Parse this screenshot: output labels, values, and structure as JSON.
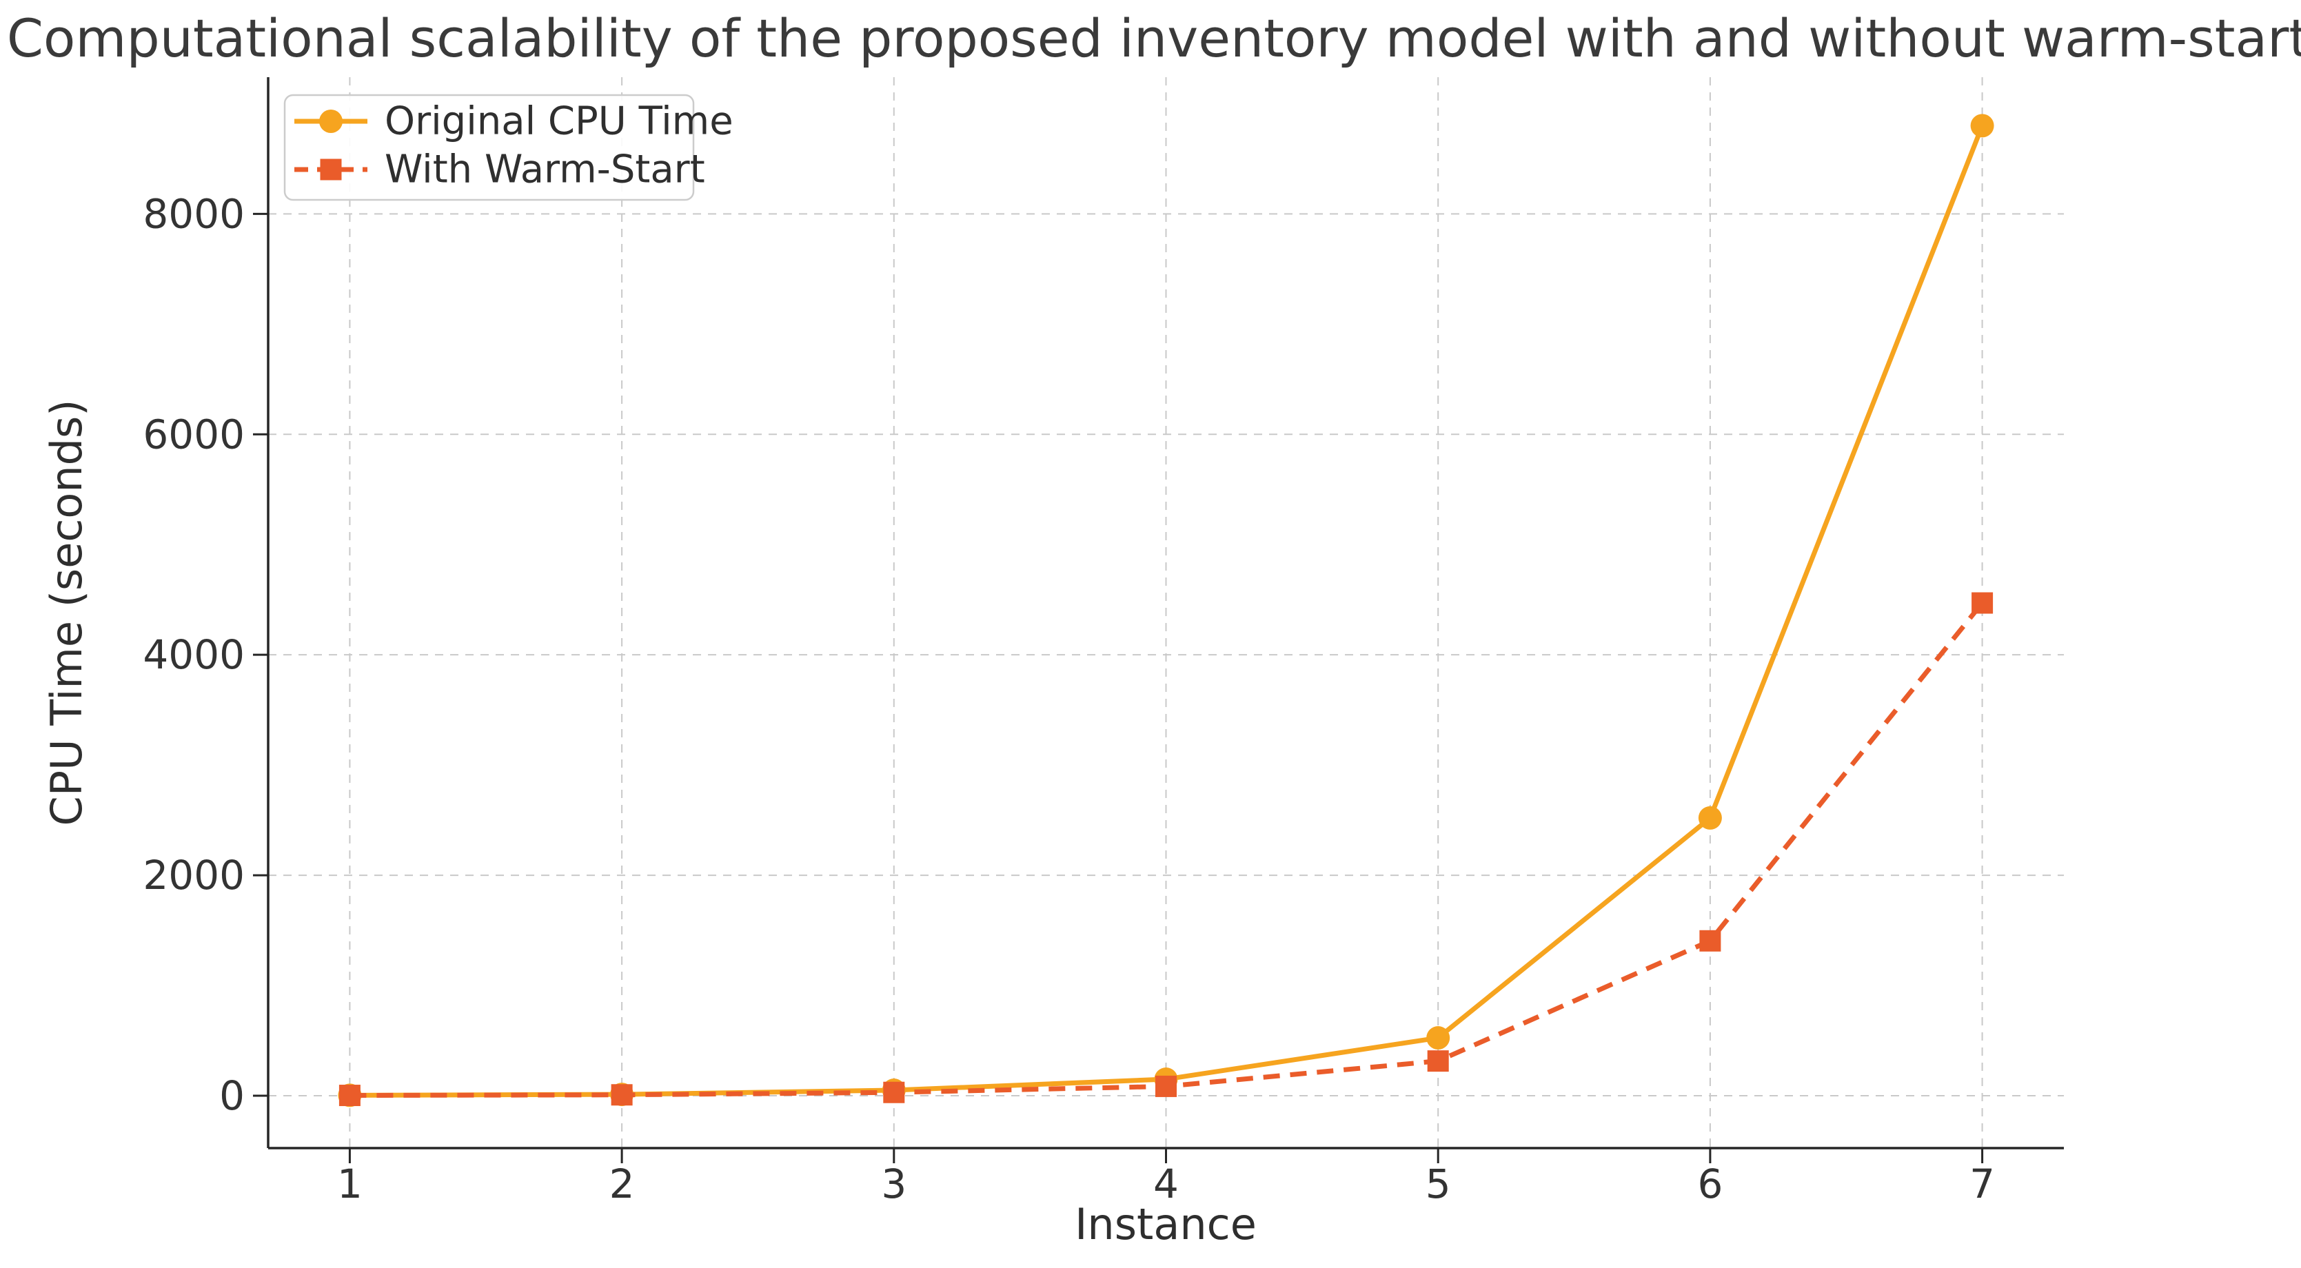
{
  "chart_data": {
    "type": "line",
    "title": "Computational scalability of the proposed inventory model with and without warm-start",
    "xlabel": "Instance",
    "ylabel": "CPU Time (seconds)",
    "x": [
      1,
      2,
      3,
      4,
      5,
      6,
      7
    ],
    "xtick_labels": [
      "1",
      "2",
      "3",
      "4",
      "5",
      "6",
      "7"
    ],
    "yticks": [
      0,
      2000,
      4000,
      6000,
      8000
    ],
    "ytick_labels": [
      "0",
      "2000",
      "4000",
      "6000",
      "8000"
    ],
    "xlim": [
      0.7,
      7.3
    ],
    "ylim": [
      -475,
      9240
    ],
    "grid": true,
    "grid_style": "dashed",
    "legend_position": "upper-left",
    "series": [
      {
        "name": "Original CPU Time",
        "color": "#F6A41F",
        "line_style": "solid",
        "marker": "circle",
        "values": [
          4,
          12,
          50,
          150,
          525,
          2520,
          8800
        ]
      },
      {
        "name": "With Warm-Start",
        "color": "#EA5C2A",
        "line_style": "dashed",
        "marker": "square",
        "values": [
          3,
          8,
          30,
          85,
          315,
          1405,
          4470
        ]
      }
    ],
    "colors": {
      "background": "#ffffff",
      "grid": "#c9c9c9",
      "spine": "#262626",
      "tick_text": "#333333",
      "title_text": "#3a3a3a"
    }
  }
}
